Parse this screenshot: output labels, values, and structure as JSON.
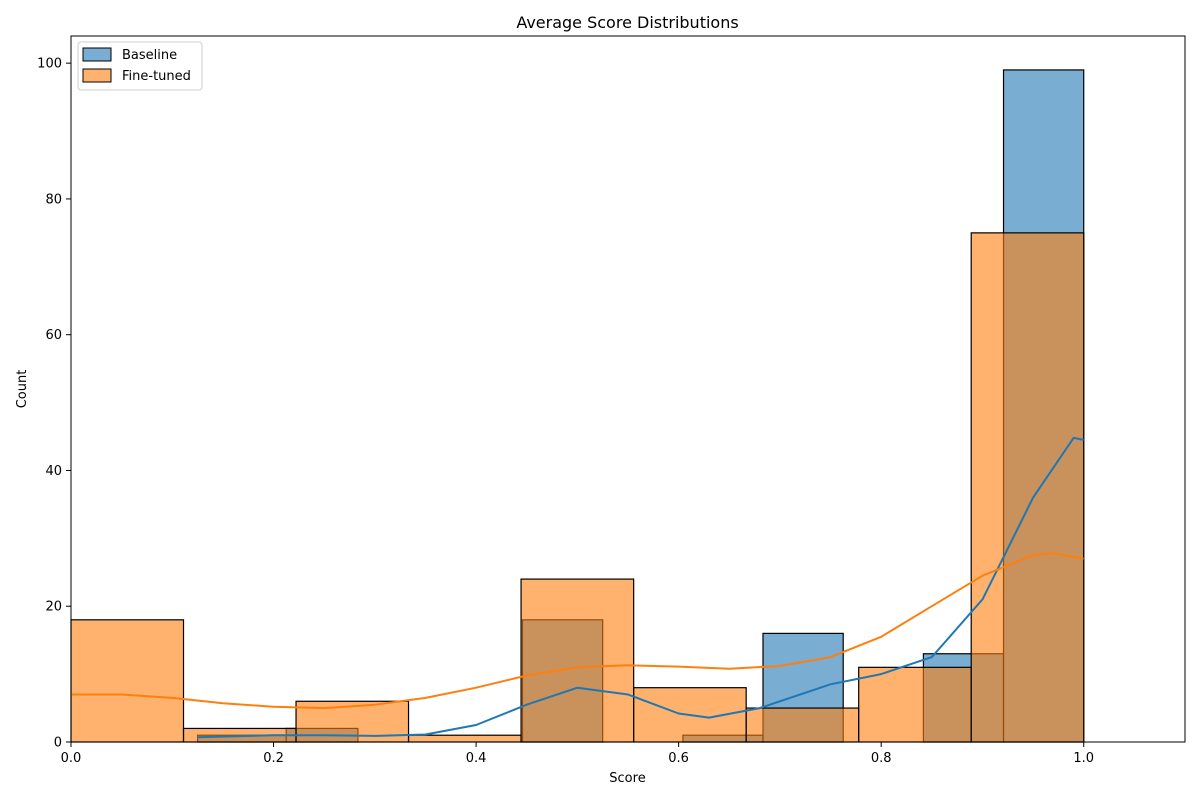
{
  "chart_data": {
    "type": "bar",
    "title": "Average Score Distributions",
    "xlabel": "Score",
    "ylabel": "Count",
    "xlim": [
      0.0,
      1.1
    ],
    "ylim": [
      0,
      104
    ],
    "xticks": [
      0.0,
      0.2,
      0.4,
      0.6,
      0.8,
      1.0
    ],
    "xtick_labels": [
      "0.0",
      "0.2",
      "0.4",
      "0.6",
      "0.8",
      "1.0"
    ],
    "yticks": [
      0,
      20,
      40,
      60,
      80,
      100
    ],
    "ytick_labels": [
      "0",
      "20",
      "40",
      "60",
      "80",
      "100"
    ],
    "grid": false,
    "legend_position": "top-left",
    "series": [
      {
        "name": "Baseline",
        "color": "#1f77b4",
        "bins": [
          {
            "x0": 0.125,
            "x1": 0.2125,
            "count": 1
          },
          {
            "x0": 0.2125,
            "x1": 0.2833,
            "count": 2
          },
          {
            "x0": 0.4458,
            "x1": 0.525,
            "count": 18
          },
          {
            "x0": 0.6042,
            "x1": 0.6833,
            "count": 1
          },
          {
            "x0": 0.6833,
            "x1": 0.7625,
            "count": 16
          },
          {
            "x0": 0.8417,
            "x1": 0.9208,
            "count": 13
          },
          {
            "x0": 0.9208,
            "x1": 1.0,
            "count": 99
          }
        ],
        "kde": [
          [
            0.125,
            0.7
          ],
          [
            0.2,
            1.0
          ],
          [
            0.25,
            1.0
          ],
          [
            0.3,
            0.9
          ],
          [
            0.35,
            1.1
          ],
          [
            0.4,
            2.5
          ],
          [
            0.45,
            5.5
          ],
          [
            0.5,
            8.0
          ],
          [
            0.55,
            7.0
          ],
          [
            0.6,
            4.2
          ],
          [
            0.63,
            3.6
          ],
          [
            0.68,
            5.0
          ],
          [
            0.75,
            8.5
          ],
          [
            0.8,
            10.0
          ],
          [
            0.85,
            12.5
          ],
          [
            0.9,
            21.0
          ],
          [
            0.95,
            36.0
          ],
          [
            0.99,
            44.8
          ],
          [
            1.0,
            44.5
          ]
        ]
      },
      {
        "name": "Fine-tuned",
        "color": "#ff7f0e",
        "bins": [
          {
            "x0": 0.0,
            "x1": 0.1111,
            "count": 18
          },
          {
            "x0": 0.1111,
            "x1": 0.2222,
            "count": 2
          },
          {
            "x0": 0.2222,
            "x1": 0.3333,
            "count": 6
          },
          {
            "x0": 0.3333,
            "x1": 0.4444,
            "count": 1
          },
          {
            "x0": 0.4444,
            "x1": 0.5556,
            "count": 24
          },
          {
            "x0": 0.5556,
            "x1": 0.6667,
            "count": 8
          },
          {
            "x0": 0.6667,
            "x1": 0.7778,
            "count": 5
          },
          {
            "x0": 0.7778,
            "x1": 0.8889,
            "count": 11
          },
          {
            "x0": 0.8889,
            "x1": 1.0,
            "count": 75
          }
        ],
        "kde": [
          [
            0.0,
            7.0
          ],
          [
            0.05,
            7.0
          ],
          [
            0.1,
            6.5
          ],
          [
            0.15,
            5.7
          ],
          [
            0.2,
            5.2
          ],
          [
            0.25,
            5.0
          ],
          [
            0.3,
            5.5
          ],
          [
            0.35,
            6.5
          ],
          [
            0.4,
            8.0
          ],
          [
            0.45,
            9.8
          ],
          [
            0.5,
            11.0
          ],
          [
            0.55,
            11.3
          ],
          [
            0.6,
            11.1
          ],
          [
            0.65,
            10.8
          ],
          [
            0.7,
            11.2
          ],
          [
            0.75,
            12.5
          ],
          [
            0.8,
            15.5
          ],
          [
            0.85,
            20.0
          ],
          [
            0.9,
            24.5
          ],
          [
            0.95,
            27.5
          ],
          [
            0.97,
            27.8
          ],
          [
            1.0,
            27.0
          ]
        ]
      }
    ]
  }
}
